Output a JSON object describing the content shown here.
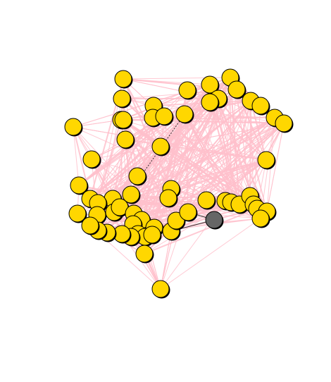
{
  "graph": {
    "node_fill": "#FFD700",
    "node_stroke": "#000000",
    "highlight_fill": "#666666",
    "edge_color": "#FFC0CB",
    "dark_edge_color": "#333333",
    "background": "#FFFFFF"
  }
}
